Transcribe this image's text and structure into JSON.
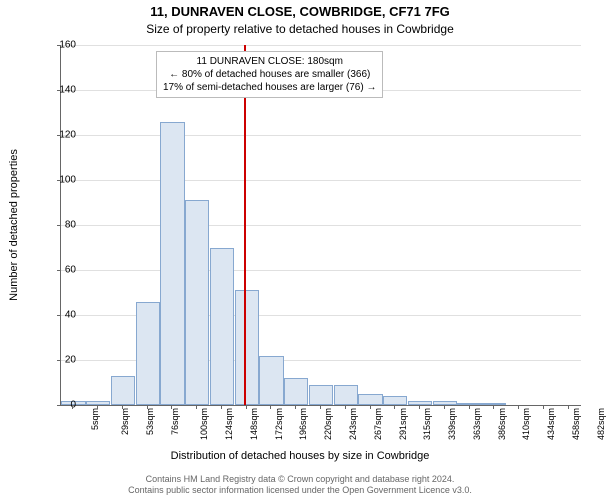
{
  "title_main": "11, DUNRAVEN CLOSE, COWBRIDGE, CF71 7FG",
  "title_sub": "Size of property relative to detached houses in Cowbridge",
  "y_axis_label": "Number of detached properties",
  "x_axis_label": "Distribution of detached houses by size in Cowbridge",
  "attribution_line1": "Contains HM Land Registry data © Crown copyright and database right 2024.",
  "attribution_line2": "Contains public sector information licensed under the Open Government Licence v3.0.",
  "chart": {
    "type": "histogram",
    "background_color": "#ffffff",
    "grid_color": "#e0e0e0",
    "axis_color": "#666666",
    "bar_fill": "#dce6f2",
    "bar_stroke": "#87a8d0",
    "reference_line_color": "#cc0000",
    "annotation_border": "#bbbbbb",
    "ylim": [
      0,
      160
    ],
    "ytick_step": 20,
    "x_categories": [
      "5sqm",
      "29sqm",
      "53sqm",
      "76sqm",
      "100sqm",
      "124sqm",
      "148sqm",
      "172sqm",
      "196sqm",
      "220sqm",
      "243sqm",
      "267sqm",
      "291sqm",
      "315sqm",
      "339sqm",
      "363sqm",
      "386sqm",
      "410sqm",
      "434sqm",
      "458sqm",
      "482sqm"
    ],
    "bar_values": [
      2,
      2,
      13,
      46,
      126,
      91,
      70,
      51,
      22,
      12,
      9,
      9,
      5,
      4,
      2,
      2,
      1,
      1,
      0,
      0,
      0
    ],
    "reference_x_index": 7,
    "annotation": {
      "line1": "11 DUNRAVEN CLOSE: 180sqm",
      "line2": "← 80% of detached houses are smaller (366)",
      "line3": "17% of semi-detached houses are larger (76) →"
    }
  }
}
